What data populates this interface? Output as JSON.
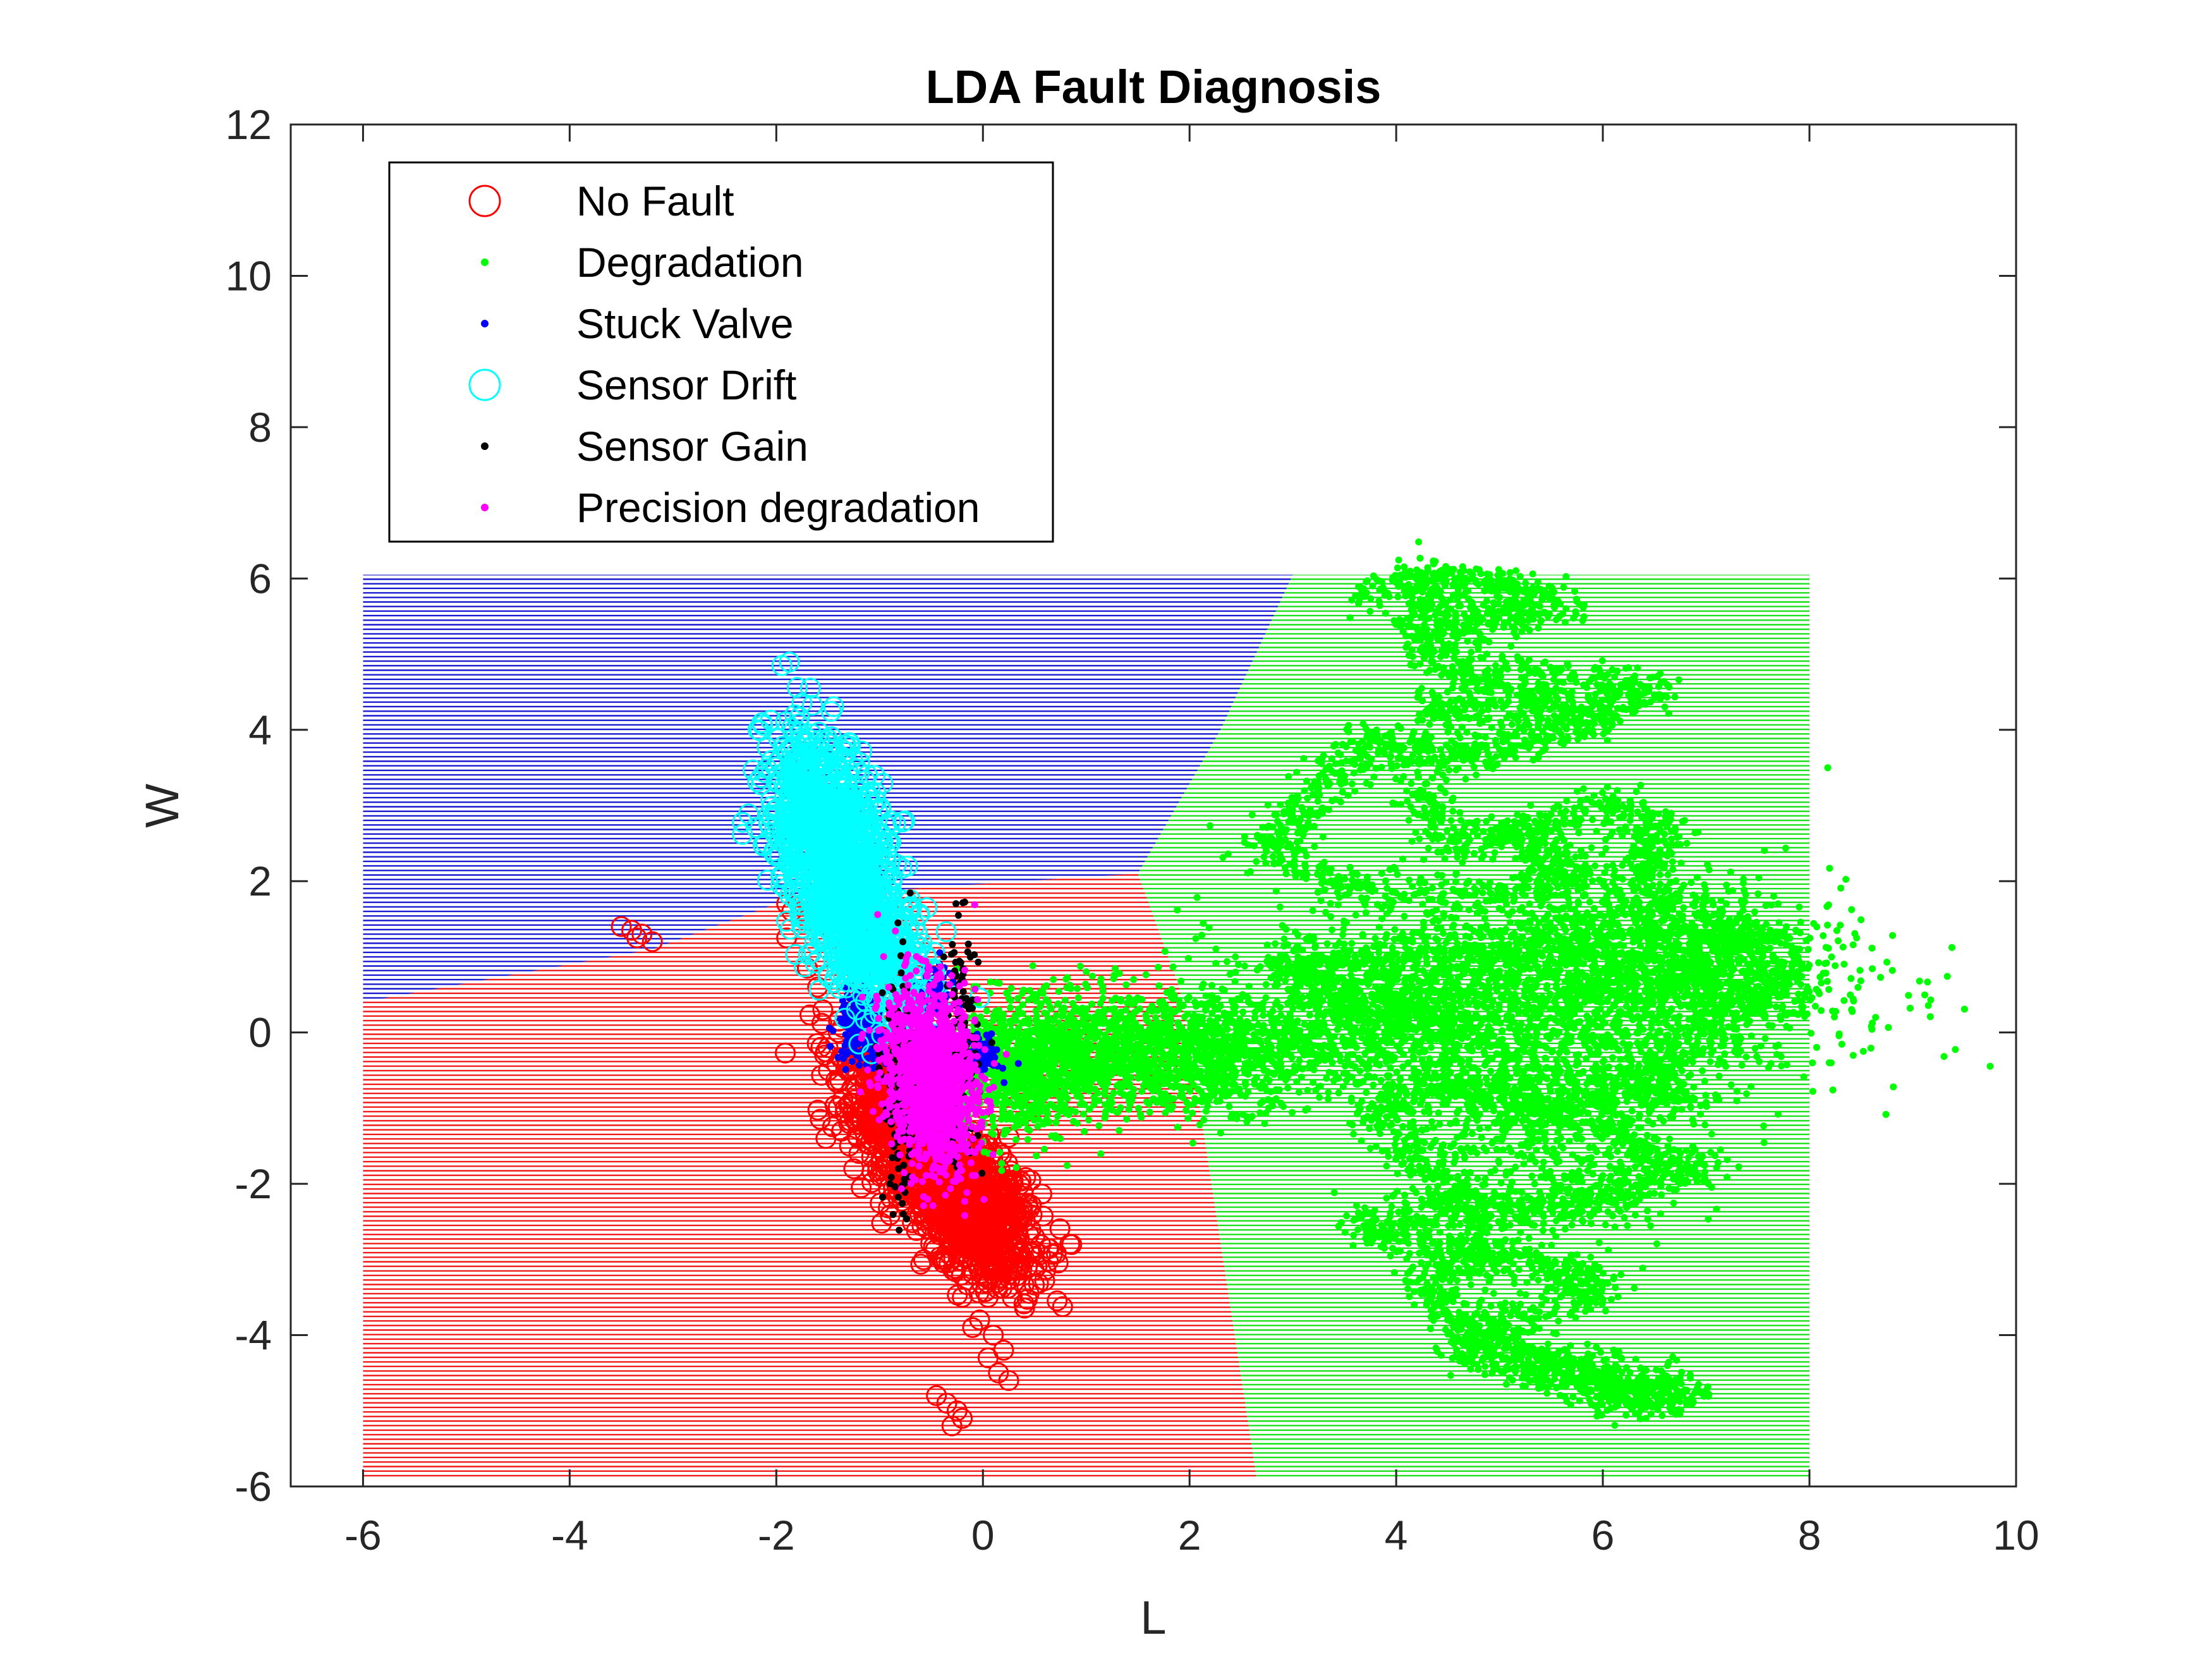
{
  "chart_data": {
    "type": "scatter",
    "title": "LDA Fault Diagnosis",
    "xlabel": "L",
    "ylabel": "W",
    "xlim": [
      -6.7,
      10
    ],
    "ylim": [
      -6,
      12
    ],
    "xticks": [
      "-6",
      "-4",
      "-2",
      "0",
      "2",
      "4",
      "6",
      "8",
      "10"
    ],
    "yticks": [
      "-6",
      "-4",
      "-2",
      "0",
      "2",
      "4",
      "6",
      "8",
      "10",
      "12"
    ],
    "grid": false,
    "legend_position": "top-left",
    "decision_regions": {
      "x_range": [
        -6,
        8
      ],
      "y_range": [
        -5.9,
        6.05
      ],
      "regions": [
        {
          "class": "Stuck Valve",
          "color": "#0000cc",
          "polygon": [
            [
              -6,
              6.05
            ],
            [
              3.0,
              6.05
            ],
            [
              2.3,
              4.0
            ],
            [
              1.5,
              2.1
            ],
            [
              -1.8,
              1.8
            ],
            [
              -3.2,
              1.1
            ],
            [
              -6,
              0.4
            ]
          ]
        },
        {
          "class": "No Fault",
          "color": "#ee0000",
          "polygon": [
            [
              -6,
              0.4
            ],
            [
              -3.2,
              1.1
            ],
            [
              -1.8,
              1.8
            ],
            [
              1.5,
              2.1
            ],
            [
              1.9,
              0.6
            ],
            [
              2.1,
              -1.0
            ],
            [
              2.65,
              -5.9
            ],
            [
              -6,
              -5.9
            ]
          ]
        },
        {
          "class": "Degradation",
          "color": "#00dd00",
          "polygon": [
            [
              3.0,
              6.05
            ],
            [
              8,
              6.05
            ],
            [
              8,
              -5.9
            ],
            [
              2.65,
              -5.9
            ],
            [
              2.1,
              -1.0
            ],
            [
              1.9,
              0.6
            ],
            [
              1.5,
              2.1
            ],
            [
              2.3,
              4.0
            ]
          ]
        }
      ]
    },
    "series": [
      {
        "name": "No Fault",
        "color": "#ff0000",
        "marker": "circle-open",
        "clusters": [
          {
            "x": -0.45,
            "y": -1.8,
            "sx": 0.45,
            "sy": 0.65,
            "rho": -0.75,
            "n": 900
          },
          {
            "x": -0.05,
            "y": -2.5,
            "sx": 0.25,
            "sy": 0.4,
            "rho": -0.3,
            "n": 450
          },
          {
            "x": -0.8,
            "y": -0.9,
            "sx": 0.25,
            "sy": 0.4,
            "rho": -0.5,
            "n": 350
          }
        ],
        "points": [
          [
            -3.5,
            1.4
          ],
          [
            -3.4,
            1.35
          ],
          [
            -3.3,
            1.3
          ],
          [
            -3.2,
            1.2
          ],
          [
            -3.35,
            1.25
          ],
          [
            -1.9,
            1.7
          ],
          [
            -1.85,
            1.6
          ],
          [
            -1.9,
            1.25
          ],
          [
            -1.7,
            0.85
          ],
          [
            -1.6,
            0.6
          ],
          [
            -1.55,
            0.3
          ],
          [
            -1.4,
            0.0
          ],
          [
            -1.5,
            -0.2
          ],
          [
            -1.3,
            -1.2
          ],
          [
            -1.2,
            -1.6
          ],
          [
            -1.25,
            -1.8
          ],
          [
            -0.4,
            -3.0
          ],
          [
            -0.2,
            -3.5
          ],
          [
            0.05,
            -3.5
          ],
          [
            -0.1,
            -3.9
          ],
          [
            0.1,
            -4.0
          ],
          [
            0.2,
            -4.2
          ],
          [
            0.15,
            -4.5
          ],
          [
            0.25,
            -4.6
          ],
          [
            0.05,
            -4.3
          ],
          [
            -0.45,
            -4.8
          ],
          [
            -0.35,
            -4.9
          ],
          [
            -0.25,
            -5.0
          ],
          [
            -0.2,
            -5.1
          ],
          [
            -0.3,
            -5.2
          ],
          [
            0.25,
            -2.6
          ],
          [
            0.1,
            -2.2
          ]
        ]
      },
      {
        "name": "Degradation",
        "color": "#00ff00",
        "marker": "dot",
        "paths": [
          [
            [
              3.7,
              5.8
            ],
            [
              4.3,
              6.0
            ],
            [
              5.0,
              5.9
            ],
            [
              5.6,
              5.6
            ],
            [
              4.7,
              5.4
            ],
            [
              4.2,
              5.6
            ],
            [
              4.4,
              4.9
            ],
            [
              5.4,
              4.7
            ],
            [
              6.5,
              4.5
            ],
            [
              5.8,
              4.2
            ],
            [
              4.9,
              4.6
            ],
            [
              4.3,
              4.2
            ],
            [
              6.0,
              4.1
            ],
            [
              5.0,
              3.8
            ],
            [
              4.3,
              3.6
            ],
            [
              3.7,
              3.9
            ],
            [
              3.2,
              3.0
            ],
            [
              2.7,
              2.5
            ],
            [
              3.5,
              1.9
            ],
            [
              4.8,
              1.8
            ],
            [
              5.8,
              2.1
            ],
            [
              5.1,
              2.6
            ],
            [
              6.1,
              3.0
            ],
            [
              6.6,
              2.6
            ],
            [
              6.3,
              2.0
            ],
            [
              7.0,
              1.4
            ],
            [
              7.5,
              1.2
            ],
            [
              6.6,
              0.8
            ],
            [
              7.8,
              0.6
            ],
            [
              7.1,
              0.2
            ],
            [
              6.4,
              -0.5
            ],
            [
              6.7,
              -0.9
            ],
            [
              5.7,
              -0.6
            ],
            [
              6.2,
              -1.5
            ],
            [
              7.0,
              -1.8
            ],
            [
              6.1,
              -2.1
            ],
            [
              5.4,
              -2.4
            ],
            [
              4.6,
              -2.2
            ],
            [
              3.6,
              -2.6
            ],
            [
              4.7,
              -2.9
            ],
            [
              5.6,
              -3.1
            ],
            [
              6.0,
              -3.4
            ],
            [
              5.0,
              -3.8
            ],
            [
              4.6,
              -4.2
            ],
            [
              5.5,
              -4.3
            ],
            [
              6.3,
              -4.6
            ],
            [
              6.8,
              -4.8
            ],
            [
              6.1,
              -4.9
            ],
            [
              5.9,
              -4.5
            ],
            [
              5.3,
              -4.5
            ],
            [
              4.7,
              -3.9
            ],
            [
              4.3,
              -3.3
            ],
            [
              4.9,
              -2.8
            ],
            [
              4.4,
              -1.9
            ],
            [
              3.8,
              -1.1
            ],
            [
              4.4,
              -0.6
            ],
            [
              5.0,
              -0.9
            ],
            [
              5.7,
              -1.1
            ],
            [
              4.5,
              0.3
            ],
            [
              3.5,
              0.4
            ],
            [
              2.9,
              0.9
            ],
            [
              3.8,
              0.9
            ],
            [
              5.1,
              1.1
            ],
            [
              6.0,
              1.2
            ],
            [
              5.3,
              2.7
            ],
            [
              4.5,
              2.5
            ],
            [
              4.2,
              3.3
            ]
          ]
        ],
        "path_spread": 0.14,
        "path_density": 90,
        "clusters": [
          {
            "x": 5.5,
            "y": 0.5,
            "sx": 1.4,
            "sy": 0.7,
            "rho": 0.0,
            "n": 1800
          },
          {
            "x": 6.5,
            "y": 1.0,
            "sx": 0.8,
            "sy": 0.5,
            "rho": 0.1,
            "n": 700
          },
          {
            "x": 5.4,
            "y": -1.5,
            "sx": 0.7,
            "sy": 0.7,
            "rho": 0.0,
            "n": 500
          },
          {
            "x": 3.8,
            "y": 0.2,
            "sx": 0.6,
            "sy": 0.5,
            "rho": 0.0,
            "n": 600
          },
          {
            "x": 2.2,
            "y": -0.3,
            "sx": 0.5,
            "sy": 0.35,
            "rho": 0.0,
            "n": 700
          },
          {
            "x": 1.1,
            "y": -0.25,
            "sx": 0.55,
            "sy": 0.4,
            "rho": 0.0,
            "n": 900
          },
          {
            "x": 0.3,
            "y": -0.5,
            "sx": 0.35,
            "sy": 0.45,
            "rho": 0.0,
            "n": 700
          }
        ]
      },
      {
        "name": "Stuck Valve",
        "color": "#0000ff",
        "marker": "dot",
        "clusters": [
          {
            "x": -1.15,
            "y": 0.1,
            "sx": 0.12,
            "sy": 0.25,
            "rho": 0.0,
            "n": 300
          },
          {
            "x": -0.5,
            "y": 0.5,
            "sx": 0.1,
            "sy": 0.2,
            "rho": 0.0,
            "n": 120
          },
          {
            "x": 0.0,
            "y": -0.3,
            "sx": 0.08,
            "sy": 0.12,
            "rho": 0.0,
            "n": 90
          }
        ]
      },
      {
        "name": "Sensor Drift",
        "color": "#00ffff",
        "marker": "circle-open",
        "clusters": [
          {
            "x": -1.5,
            "y": 2.6,
            "sx": 0.3,
            "sy": 0.7,
            "rho": -0.4,
            "n": 900
          },
          {
            "x": -1.1,
            "y": 1.2,
            "sx": 0.3,
            "sy": 0.5,
            "rho": -0.5,
            "n": 500
          }
        ]
      },
      {
        "name": "Sensor Gain",
        "color": "#000000",
        "marker": "dot",
        "clusters": [
          {
            "x": -0.8,
            "y": -0.8,
            "sx": 0.08,
            "sy": 0.8,
            "rho": 0.0,
            "n": 160
          },
          {
            "x": -0.2,
            "y": -0.2,
            "sx": 0.08,
            "sy": 0.8,
            "rho": 0.0,
            "n": 120
          }
        ]
      },
      {
        "name": "Precision degradation",
        "color": "#ff00ff",
        "marker": "dot",
        "clusters": [
          {
            "x": -0.5,
            "y": -0.6,
            "sx": 0.22,
            "sy": 0.6,
            "rho": -0.2,
            "n": 1400
          }
        ]
      }
    ]
  },
  "legend": {
    "items": [
      {
        "label": "No Fault",
        "color": "#ff0000",
        "marker": "circle-open"
      },
      {
        "label": "Degradation",
        "color": "#00ff00",
        "marker": "dot"
      },
      {
        "label": "Stuck Valve",
        "color": "#0000ff",
        "marker": "dot"
      },
      {
        "label": "Sensor Drift",
        "color": "#00ffff",
        "marker": "circle-open"
      },
      {
        "label": "Sensor Gain",
        "color": "#000000",
        "marker": "dot"
      },
      {
        "label": "Precision degradation",
        "color": "#ff00ff",
        "marker": "dot"
      }
    ]
  }
}
